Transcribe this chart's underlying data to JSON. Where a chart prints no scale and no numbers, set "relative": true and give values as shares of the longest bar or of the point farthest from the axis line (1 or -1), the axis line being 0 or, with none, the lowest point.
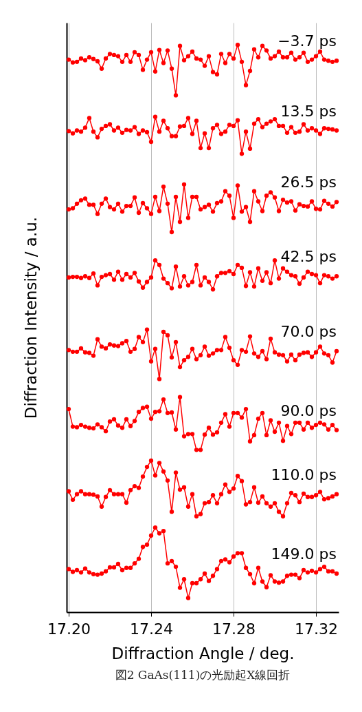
{
  "chart_data": {
    "type": "line",
    "relative": true,
    "marker": "circle",
    "line_style": "solid",
    "grid": "x",
    "legend": false,
    "xlabel": "Diffraction Angle / deg.",
    "ylabel": "Diffraction Intensity / a.u.",
    "annotations": [
      "図2 GaAs(111)の光励起X線回折"
    ],
    "xlim": [
      17.199,
      17.331
    ],
    "xticks": [
      {
        "value": 17.2,
        "label": "17.20"
      },
      {
        "value": 17.24,
        "label": "17.24"
      },
      {
        "value": 17.28,
        "label": "17.28"
      },
      {
        "value": 17.32,
        "label": "17.32"
      }
    ],
    "x": [
      17.2,
      17.202,
      17.204,
      17.206,
      17.208,
      17.21,
      17.212,
      17.214,
      17.216,
      17.218,
      17.22,
      17.222,
      17.224,
      17.226,
      17.228,
      17.23,
      17.232,
      17.234,
      17.236,
      17.238,
      17.24,
      17.242,
      17.244,
      17.246,
      17.248,
      17.25,
      17.252,
      17.254,
      17.256,
      17.258,
      17.26,
      17.262,
      17.264,
      17.266,
      17.268,
      17.27,
      17.272,
      17.274,
      17.276,
      17.278,
      17.28,
      17.282,
      17.284,
      17.286,
      17.288,
      17.29,
      17.292,
      17.294,
      17.296,
      17.298,
      17.3,
      17.302,
      17.304,
      17.306,
      17.308,
      17.31,
      17.312,
      17.314,
      17.316,
      17.318,
      17.32,
      17.322,
      17.324,
      17.326,
      17.328,
      17.33
    ],
    "series": [
      {
        "name": "−3.7 ps",
        "color": "#ff0000",
        "values": [
          0.974,
          0.969,
          0.97,
          0.976,
          0.973,
          0.978,
          0.975,
          0.971,
          0.958,
          0.976,
          0.984,
          0.982,
          0.98,
          0.97,
          0.982,
          0.97,
          0.987,
          0.982,
          0.956,
          0.974,
          0.987,
          0.953,
          0.991,
          0.968,
          0.99,
          0.958,
          0.911,
          0.998,
          0.973,
          0.98,
          0.988,
          0.976,
          0.974,
          0.963,
          0.98,
          0.952,
          0.948,
          0.984,
          0.968,
          0.984,
          0.976,
          1.0,
          0.97,
          0.929,
          0.954,
          0.992,
          0.978,
          0.998,
          0.99,
          0.976,
          0.98,
          0.988,
          0.978,
          0.978,
          0.986,
          0.974,
          0.978,
          0.986,
          0.97,
          0.974,
          0.98,
          0.988,
          0.974,
          0.972,
          0.97,
          0.972
        ]
      },
      {
        "name": "13.5 ps",
        "color": "#ff0000",
        "values": [
          0.848,
          0.844,
          0.849,
          0.847,
          0.854,
          0.871,
          0.847,
          0.837,
          0.852,
          0.857,
          0.86,
          0.849,
          0.854,
          0.845,
          0.85,
          0.849,
          0.855,
          0.843,
          0.849,
          0.846,
          0.829,
          0.873,
          0.847,
          0.866,
          0.853,
          0.839,
          0.839,
          0.856,
          0.857,
          0.871,
          0.843,
          0.866,
          0.818,
          0.844,
          0.818,
          0.853,
          0.859,
          0.843,
          0.847,
          0.859,
          0.857,
          0.867,
          0.808,
          0.847,
          0.817,
          0.861,
          0.869,
          0.855,
          0.861,
          0.865,
          0.869,
          0.857,
          0.857,
          0.845,
          0.855,
          0.845,
          0.847,
          0.86,
          0.849,
          0.853,
          0.849,
          0.843,
          0.853,
          0.852,
          0.851,
          0.849
        ]
      },
      {
        "name": "26.5 ps",
        "color": "#ff0000",
        "values": [
          0.71,
          0.712,
          0.72,
          0.726,
          0.729,
          0.718,
          0.718,
          0.702,
          0.72,
          0.729,
          0.714,
          0.71,
          0.72,
          0.706,
          0.716,
          0.716,
          0.731,
          0.704,
          0.721,
          0.712,
          0.702,
          0.732,
          0.707,
          0.75,
          0.72,
          0.67,
          0.732,
          0.688,
          0.754,
          0.695,
          0.732,
          0.732,
          0.71,
          0.714,
          0.718,
          0.706,
          0.721,
          0.724,
          0.742,
          0.734,
          0.695,
          0.752,
          0.706,
          0.714,
          0.688,
          0.742,
          0.724,
          0.707,
          0.734,
          0.74,
          0.731,
          0.707,
          0.727,
          0.722,
          0.724,
          0.708,
          0.719,
          0.716,
          0.715,
          0.724,
          0.711,
          0.71,
          0.725,
          0.72,
          0.715,
          0.723
        ]
      },
      {
        "name": "42.5 ps",
        "color": "#ff0000",
        "values": [
          0.59,
          0.591,
          0.591,
          0.589,
          0.592,
          0.589,
          0.597,
          0.576,
          0.591,
          0.594,
          0.596,
          0.586,
          0.6,
          0.586,
          0.596,
          0.59,
          0.598,
          0.583,
          0.572,
          0.582,
          0.59,
          0.62,
          0.612,
          0.588,
          0.58,
          0.571,
          0.609,
          0.574,
          0.592,
          0.576,
          0.582,
          0.612,
          0.576,
          0.59,
          0.582,
          0.569,
          0.592,
          0.598,
          0.598,
          0.601,
          0.596,
          0.612,
          0.607,
          0.575,
          0.599,
          0.574,
          0.606,
          0.584,
          0.599,
          0.58,
          0.62,
          0.588,
          0.606,
          0.6,
          0.594,
          0.592,
          0.579,
          0.59,
          0.6,
          0.596,
          0.594,
          0.58,
          0.594,
          0.592,
          0.588,
          0.592
        ]
      },
      {
        "name": "70.0 ps",
        "color": "#ff0000",
        "values": [
          0.462,
          0.459,
          0.459,
          0.465,
          0.458,
          0.457,
          0.452,
          0.481,
          0.468,
          0.465,
          0.472,
          0.47,
          0.469,
          0.474,
          0.478,
          0.459,
          0.464,
          0.485,
          0.476,
          0.498,
          0.442,
          0.464,
          0.411,
          0.494,
          0.488,
          0.449,
          0.476,
          0.432,
          0.444,
          0.45,
          0.464,
          0.446,
          0.453,
          0.468,
          0.452,
          0.456,
          0.462,
          0.462,
          0.485,
          0.466,
          0.444,
          0.436,
          0.462,
          0.459,
          0.486,
          0.456,
          0.45,
          0.46,
          0.446,
          0.482,
          0.458,
          0.454,
          0.453,
          0.442,
          0.454,
          0.444,
          0.454,
          0.457,
          0.458,
          0.45,
          0.458,
          0.468,
          0.456,
          0.453,
          0.44,
          0.46
        ]
      },
      {
        "name": "90.0 ps",
        "color": "#ff0000",
        "values": [
          0.358,
          0.327,
          0.326,
          0.33,
          0.327,
          0.325,
          0.324,
          0.331,
          0.326,
          0.319,
          0.336,
          0.34,
          0.329,
          0.325,
          0.34,
          0.328,
          0.337,
          0.353,
          0.36,
          0.362,
          0.341,
          0.353,
          0.354,
          0.375,
          0.351,
          0.352,
          0.322,
          0.379,
          0.31,
          0.314,
          0.314,
          0.286,
          0.286,
          0.313,
          0.325,
          0.313,
          0.317,
          0.334,
          0.349,
          0.327,
          0.351,
          0.351,
          0.343,
          0.358,
          0.301,
          0.312,
          0.341,
          0.351,
          0.312,
          0.338,
          0.318,
          0.334,
          0.302,
          0.328,
          0.314,
          0.334,
          0.334,
          0.322,
          0.334,
          0.325,
          0.33,
          0.334,
          0.331,
          0.322,
          0.33,
          0.321
        ]
      },
      {
        "name": "110.0 ps",
        "color": "#ff0000",
        "values": [
          0.213,
          0.198,
          0.208,
          0.213,
          0.208,
          0.208,
          0.207,
          0.204,
          0.186,
          0.203,
          0.215,
          0.208,
          0.208,
          0.208,
          0.193,
          0.215,
          0.222,
          0.219,
          0.239,
          0.256,
          0.267,
          0.241,
          0.263,
          0.248,
          0.232,
          0.177,
          0.246,
          0.216,
          0.22,
          0.186,
          0.208,
          0.169,
          0.173,
          0.192,
          0.194,
          0.206,
          0.192,
          0.208,
          0.225,
          0.212,
          0.218,
          0.24,
          0.231,
          0.19,
          0.194,
          0.22,
          0.193,
          0.204,
          0.192,
          0.186,
          0.192,
          0.177,
          0.169,
          0.192,
          0.21,
          0.206,
          0.194,
          0.209,
          0.203,
          0.203,
          0.206,
          0.212,
          0.199,
          0.201,
          0.204,
          0.208
        ]
      },
      {
        "name": "149.0 ps",
        "color": "#ff0000",
        "values": [
          0.076,
          0.071,
          0.074,
          0.07,
          0.077,
          0.07,
          0.067,
          0.066,
          0.068,
          0.072,
          0.079,
          0.079,
          0.085,
          0.074,
          0.078,
          0.078,
          0.086,
          0.094,
          0.115,
          0.119,
          0.135,
          0.149,
          0.139,
          0.143,
          0.086,
          0.09,
          0.08,
          0.043,
          0.058,
          0.025,
          0.051,
          0.051,
          0.058,
          0.068,
          0.055,
          0.064,
          0.076,
          0.09,
          0.093,
          0.088,
          0.098,
          0.104,
          0.104,
          0.078,
          0.067,
          0.051,
          0.078,
          0.054,
          0.044,
          0.065,
          0.054,
          0.052,
          0.054,
          0.064,
          0.066,
          0.066,
          0.06,
          0.074,
          0.07,
          0.073,
          0.07,
          0.076,
          0.08,
          0.072,
          0.072,
          0.068
        ]
      }
    ]
  }
}
